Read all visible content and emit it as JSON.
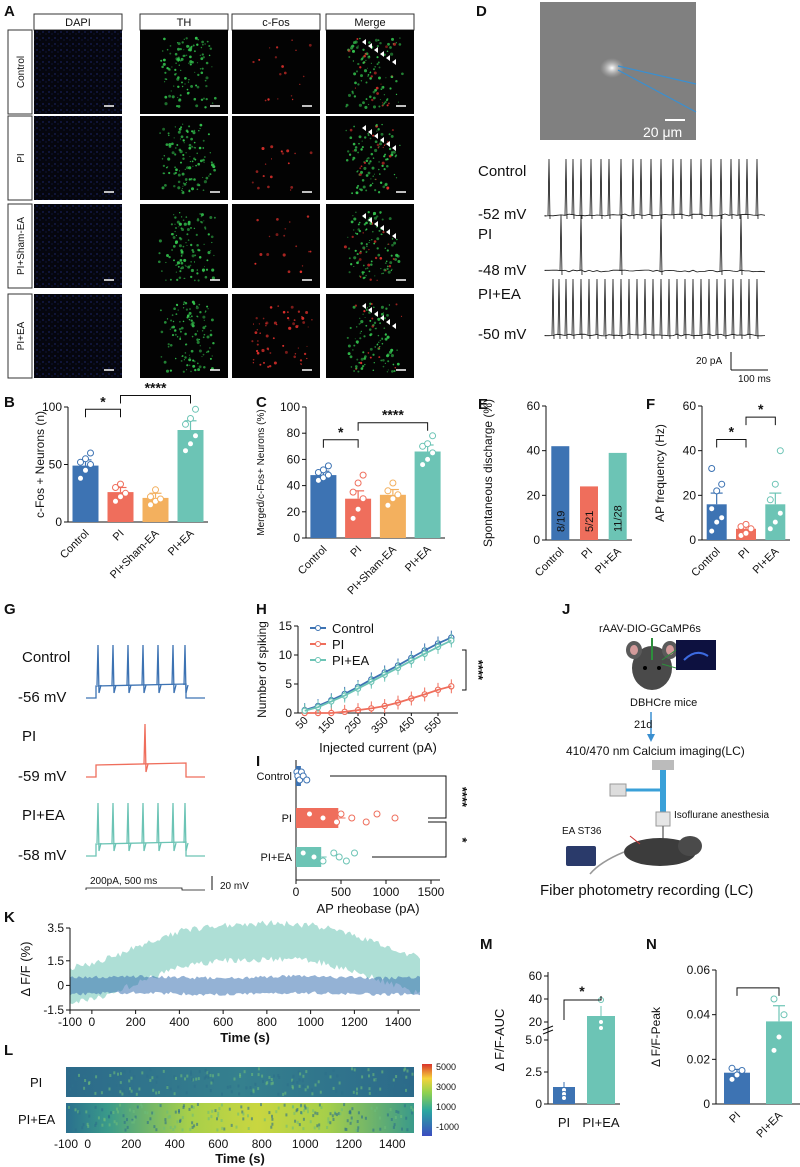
{
  "colors": {
    "control": "#3d73b3",
    "pi": "#ef6e5c",
    "sham": "#f3b05e",
    "ea": "#6cc4b5",
    "ea_dark": "#5eb8a6",
    "dapi": "#1b2a8a",
    "th": "#33c24d",
    "cfos": "#e0302c",
    "black": "#111111"
  },
  "panelA": {
    "label": "A",
    "columns": [
      "DAPI",
      "TH",
      "c-Fos",
      "Merge"
    ],
    "rows": [
      "Control",
      "PI",
      "PI+Sham-EA",
      "PI+EA"
    ]
  },
  "panelD": {
    "label": "D",
    "scale_label": "20 μm",
    "traces": [
      {
        "group": "Control",
        "voltage": "-52 mV"
      },
      {
        "group": "PI",
        "voltage": "-48 mV"
      },
      {
        "group": "PI+EA",
        "voltage": "-50 mV"
      }
    ],
    "scale_y": "20 pA",
    "scale_x": "100 ms"
  },
  "panelG": {
    "label": "G",
    "traces": [
      {
        "group": "Control",
        "voltage": "-56 mV"
      },
      {
        "group": "PI",
        "voltage": "-59 mV"
      },
      {
        "group": "PI+EA",
        "voltage": "-58 mV"
      }
    ],
    "stim": "200pA, 500 ms",
    "scale_y": "20 mV"
  },
  "panelJ": {
    "label": "J",
    "virus": "rAAV-DIO-GCaMP6s",
    "mice": "DBHCre mice",
    "delay": "21d",
    "imaging": "410/470 nm Calcium imaging(LC)",
    "anesthesia": "Isoflurane anesthesia",
    "acupoint": "EA ST36",
    "caption": "Fiber photometry recording (LC)"
  },
  "chart_data": [
    {
      "id": "B",
      "type": "bar",
      "title": "",
      "ylabel": "c-Fos + Neurons (n)",
      "categories": [
        "Control",
        "PI",
        "PI+Sham-EA",
        "PI+EA"
      ],
      "values": [
        49,
        26,
        21,
        80
      ],
      "errors": [
        5,
        4,
        4,
        8
      ],
      "points": [
        [
          38,
          45,
          50,
          52,
          55,
          60
        ],
        [
          18,
          22,
          25,
          30,
          33
        ],
        [
          15,
          18,
          20,
          22,
          28
        ],
        [
          62,
          68,
          75,
          85,
          90,
          98
        ]
      ],
      "ylim": [
        0,
        100
      ],
      "yticks": [
        "0",
        "50",
        "100"
      ],
      "sig": [
        {
          "text": "*"
        },
        {
          "text": "****"
        }
      ]
    },
    {
      "id": "C",
      "type": "bar",
      "ylabel": "Merged/c-Fos+ Neurons (%)",
      "categories": [
        "Control",
        "PI",
        "PI+Sham-EA",
        "PI+EA"
      ],
      "values": [
        48,
        30,
        33,
        66
      ],
      "errors": [
        3,
        6,
        4,
        5
      ],
      "points": [
        [
          44,
          46,
          48,
          50,
          52,
          55
        ],
        [
          15,
          22,
          30,
          35,
          42,
          48
        ],
        [
          25,
          30,
          33,
          36,
          42
        ],
        [
          56,
          60,
          65,
          70,
          72,
          78
        ]
      ],
      "ylim": [
        0,
        100
      ],
      "yticks": [
        "0",
        "20",
        "40",
        "60",
        "80",
        "100"
      ],
      "sig": [
        {
          "text": "*"
        },
        {
          "text": "****"
        }
      ]
    },
    {
      "id": "E",
      "type": "bar",
      "ylabel": "Spontaneous discharge (%)",
      "categories": [
        "Control",
        "PI",
        "PI+EA"
      ],
      "values": [
        42,
        24,
        39
      ],
      "bar_labels": [
        "8/19",
        "5/21",
        "11/28"
      ],
      "ylim": [
        0,
        60
      ],
      "yticks": [
        "0",
        "20",
        "40",
        "60"
      ]
    },
    {
      "id": "F",
      "type": "bar",
      "ylabel": "AP frequency (Hz)",
      "categories": [
        "Control",
        "PI",
        "PI+EA"
      ],
      "values": [
        16,
        5,
        16
      ],
      "errors": [
        5,
        1,
        5
      ],
      "points": [
        [
          4,
          8,
          10,
          14,
          22,
          25,
          32
        ],
        [
          2,
          3,
          5,
          6,
          7
        ],
        [
          5,
          8,
          12,
          18,
          25,
          40
        ]
      ],
      "ylim": [
        0,
        60
      ],
      "yticks": [
        "0",
        "20",
        "40",
        "60"
      ],
      "sig": [
        {
          "text": "*"
        },
        {
          "text": "*"
        }
      ]
    },
    {
      "id": "H",
      "type": "line",
      "xlabel": "Injected current (pA)",
      "ylabel": "Number of spiking",
      "x": [
        50,
        100,
        150,
        200,
        250,
        300,
        350,
        400,
        450,
        500,
        550,
        600
      ],
      "xticks": [
        "50",
        "150",
        "250",
        "350",
        "450",
        "550"
      ],
      "yticks": [
        "0",
        "5",
        "10",
        "15"
      ],
      "ylim": [
        0,
        15
      ],
      "series": [
        {
          "name": "Control",
          "values": [
            0.5,
            1.2,
            2.2,
            3.3,
            4.5,
            5.8,
            7.0,
            8.2,
            9.5,
            10.8,
            12.0,
            13.0
          ]
        },
        {
          "name": "PI",
          "values": [
            0,
            0,
            0,
            0.2,
            0.5,
            0.8,
            1.2,
            1.8,
            2.5,
            3.2,
            4.0,
            4.6
          ]
        },
        {
          "name": "PI+EA",
          "values": [
            0.4,
            1.0,
            2.0,
            3.0,
            4.2,
            5.4,
            6.6,
            7.8,
            9.0,
            10.2,
            11.4,
            12.5
          ]
        }
      ],
      "sig": "****"
    },
    {
      "id": "I",
      "type": "bar",
      "orientation": "horizontal",
      "xlabel": "AP rheobase (pA)",
      "categories": [
        "Control",
        "PI",
        "PI+EA"
      ],
      "values": [
        55,
        470,
        280
      ],
      "errors": [
        20,
        80,
        60
      ],
      "points": [
        [
          10,
          20,
          40,
          60,
          80,
          120
        ],
        [
          150,
          300,
          450,
          500,
          620,
          780,
          900,
          1100
        ],
        [
          80,
          200,
          300,
          420,
          480,
          560,
          650
        ]
      ],
      "xlim": [
        0,
        1600
      ],
      "xticks": [
        "0",
        "500",
        "1000",
        "1500"
      ],
      "sig": [
        {
          "text": "****"
        },
        {
          "text": "*"
        }
      ]
    },
    {
      "id": "K",
      "type": "area",
      "xlabel": "Time (s)",
      "ylabel": "Δ F/F (%)",
      "xticks": [
        "-100",
        "0",
        "200",
        "400",
        "600",
        "800",
        "1000",
        "1200",
        "1400"
      ],
      "yticks": [
        "-1.5",
        "0",
        "1.5",
        "3.5"
      ],
      "xlim": [
        -100,
        1500
      ],
      "ylim": [
        -1.5,
        3.5
      ],
      "series": [
        {
          "name": "PI+EA",
          "x": [
            -100,
            0,
            200,
            400,
            600,
            800,
            1000,
            1200,
            1400,
            1500
          ],
          "values": [
            0,
            0.2,
            1.2,
            2.2,
            2.6,
            2.7,
            2.6,
            2.0,
            1.0,
            0.6
          ]
        },
        {
          "name": "PI",
          "x": [
            -100,
            0,
            200,
            400,
            600,
            800,
            1000,
            1200,
            1400,
            1500
          ],
          "values": [
            0,
            0,
            -0.1,
            0,
            0.1,
            0.1,
            0.2,
            0.1,
            0,
            0
          ]
        }
      ]
    },
    {
      "id": "L",
      "type": "heatmap",
      "xlabel": "Time (s)",
      "rows": [
        "PI",
        "PI+EA"
      ],
      "xticks": [
        "-100",
        "0",
        "200",
        "400",
        "600",
        "800",
        "1000",
        "1200",
        "1400"
      ],
      "colorbar": [
        "5000",
        "3000",
        "1000",
        "-1000"
      ],
      "xlim": [
        -100,
        1500
      ]
    },
    {
      "id": "M",
      "type": "bar",
      "ylabel": "Δ F/F-AUC",
      "categories": [
        "PI",
        "PI+EA"
      ],
      "yticks": [
        "0",
        "2.5",
        "5.0",
        "20",
        "40",
        "60"
      ],
      "broken_axis": true,
      "values": [
        1.2,
        24
      ],
      "errors": [
        0.4,
        5
      ],
      "sig": "*"
    },
    {
      "id": "N",
      "type": "bar",
      "ylabel": "Δ F/F-Peak",
      "categories": [
        "PI",
        "PI+EA"
      ],
      "values": [
        0.014,
        0.037
      ],
      "errors": [
        0.0015,
        0.007
      ],
      "points": [
        [
          0.011,
          0.013,
          0.015,
          0.016
        ],
        [
          0.024,
          0.03,
          0.04,
          0.047
        ]
      ],
      "ylim": [
        0,
        0.06
      ],
      "yticks": [
        "0",
        "0.02",
        "0.04",
        "0.06"
      ],
      "sig": "*"
    }
  ]
}
